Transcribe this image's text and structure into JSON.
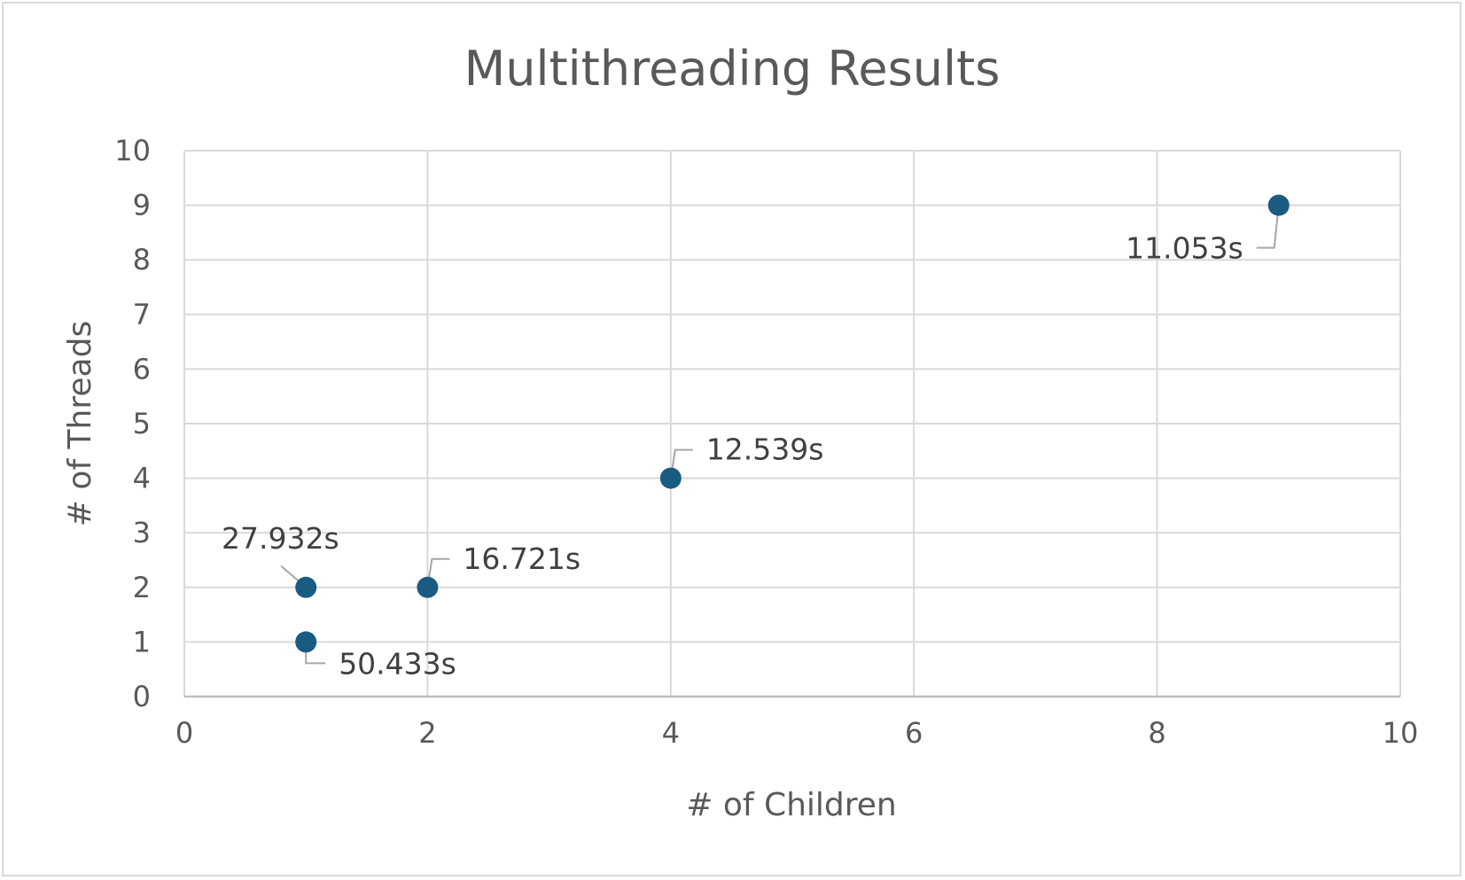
{
  "chart_data": {
    "type": "scatter",
    "title": "Multithreading Results",
    "xlabel": "# of Children",
    "ylabel": "# of Threads",
    "xlim": [
      0,
      10
    ],
    "ylim": [
      0,
      10
    ],
    "x_ticks": [
      "0",
      "2",
      "4",
      "6",
      "8",
      "10"
    ],
    "y_ticks": [
      "0",
      "1",
      "2",
      "3",
      "4",
      "5",
      "6",
      "7",
      "8",
      "9",
      "10"
    ],
    "grid": true,
    "legend": "none",
    "point_color": "#1a5b82",
    "points": [
      {
        "x": 1,
        "y": 1,
        "label": "50.433s",
        "label_side": "bottom-right"
      },
      {
        "x": 1,
        "y": 2,
        "label": "27.932s",
        "label_side": "top-left"
      },
      {
        "x": 2,
        "y": 2,
        "label": "16.721s",
        "label_side": "top-right"
      },
      {
        "x": 4,
        "y": 4,
        "label": "12.539s",
        "label_side": "top-right"
      },
      {
        "x": 9,
        "y": 9,
        "label": "11.053s",
        "label_side": "bottom-left"
      }
    ]
  }
}
